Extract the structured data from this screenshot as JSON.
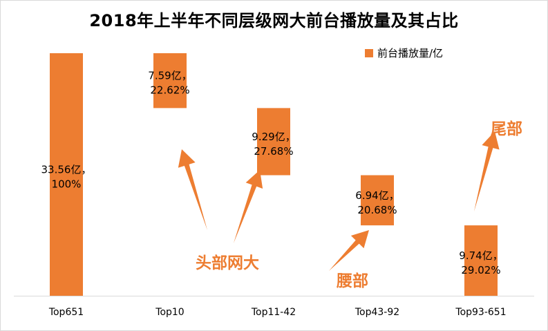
{
  "chart_data": {
    "type": "bar",
    "subtype": "waterfall",
    "title": "2018年上半年不同层级网大前台播放量及其占比",
    "xlabel": "",
    "ylabel": "",
    "grid": false,
    "legend": {
      "position": "top-right",
      "entries": [
        "前台播放量/亿"
      ]
    },
    "categories": [
      "Top651",
      "Top10",
      "Top11-42",
      "Top43-92",
      "Top93-651"
    ],
    "series": [
      {
        "name": "前台播放量/亿",
        "color": "#ED7D31",
        "values": [
          33.56,
          7.59,
          9.29,
          6.94,
          9.74
        ],
        "base": [
          0,
          25.97,
          16.68,
          9.74,
          0
        ],
        "labels": [
          [
            "33.56亿，",
            "100%"
          ],
          [
            "7.59亿，",
            "22.62%"
          ],
          [
            "9.29亿，",
            "27.68%"
          ],
          [
            "6.94亿，",
            "20.68%"
          ],
          [
            "9.74亿，",
            "29.02%"
          ]
        ]
      }
    ],
    "ylim": [
      0,
      33.56
    ],
    "annotations": [
      {
        "text": "头部网大",
        "target_categories": [
          "Top10",
          "Top11-42"
        ]
      },
      {
        "text": "腰部",
        "target_categories": [
          "Top43-92"
        ]
      },
      {
        "text": "尾部",
        "target_categories": [
          "Top93-651"
        ]
      }
    ]
  }
}
